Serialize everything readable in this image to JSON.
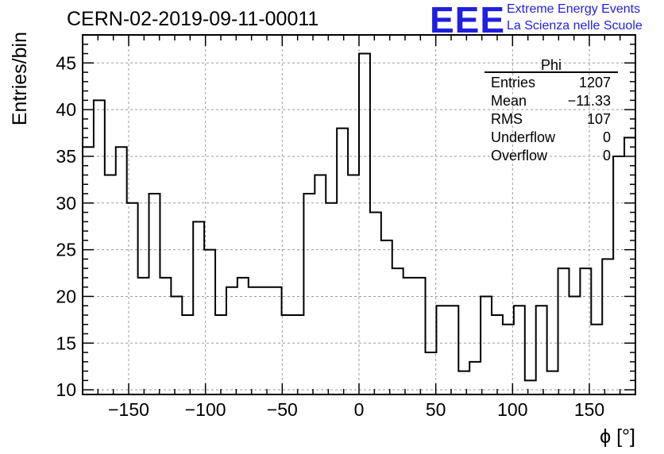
{
  "header": {
    "title": "CERN-02-2019-09-11-00011",
    "logo_text": "EEE",
    "logo_line1": "Extreme Energy Events",
    "logo_line2": "La Scienza nelle Scuole",
    "logo_color": "#1f1fe0"
  },
  "stats": {
    "name": "Phi",
    "rows": [
      {
        "label": "Entries",
        "value": "1207"
      },
      {
        "label": "Mean",
        "value": "−11.33"
      },
      {
        "label": "RMS",
        "value": "107"
      },
      {
        "label": "Underflow",
        "value": "0"
      },
      {
        "label": "Overflow",
        "value": "0"
      }
    ]
  },
  "chart_data": {
    "type": "histogram",
    "title": "CERN-02-2019-09-11-00011",
    "xlabel": "ϕ [°]",
    "ylabel": "Entries/bin",
    "xlim": [
      -180,
      180
    ],
    "ylim": [
      9.5,
      48
    ],
    "bin_width": 7.2,
    "bin_edges_start": -180,
    "values": [
      36,
      41,
      33,
      36,
      30,
      22,
      31,
      22,
      20,
      18,
      28,
      25,
      18,
      21,
      22,
      21,
      21,
      21,
      18,
      18,
      31,
      33,
      30,
      38,
      33,
      46,
      29,
      26,
      23,
      22,
      22,
      14,
      19,
      19,
      12,
      13,
      20,
      18,
      17,
      19,
      11,
      19,
      12,
      23,
      20,
      23,
      17,
      24,
      35,
      37
    ],
    "xticks": [
      -150,
      -100,
      -50,
      0,
      50,
      100,
      150
    ],
    "xtick_labels": [
      "−150",
      "−100",
      "−50",
      "0",
      "50",
      "100",
      "150"
    ],
    "yticks": [
      10,
      15,
      20,
      25,
      30,
      35,
      40,
      45
    ],
    "ytick_labels": [
      "10",
      "15",
      "20",
      "25",
      "30",
      "35",
      "40",
      "45"
    ],
    "grid": true,
    "line_color": "#000000"
  }
}
